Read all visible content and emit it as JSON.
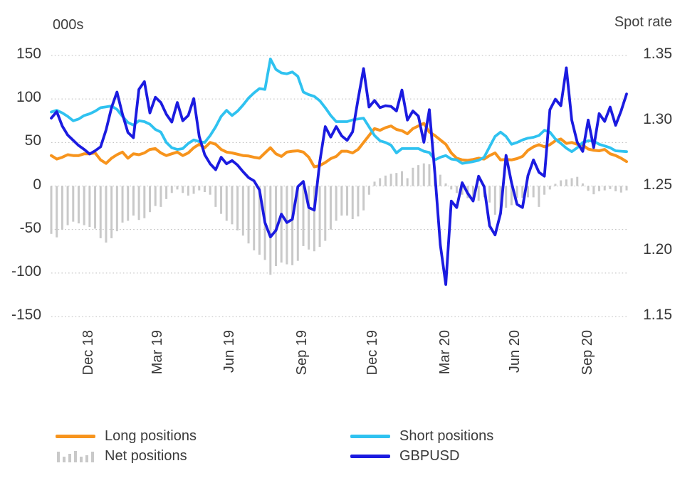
{
  "axis_titles": {
    "left": "000s",
    "right": "Spot rate"
  },
  "colors": {
    "long": "#F7941D",
    "short": "#2FC2F0",
    "gbpusd": "#1B1BE0",
    "net": "#C9C9C9",
    "grid": "#BDBDBD",
    "text": "#3F3F3F"
  },
  "legend": {
    "items": [
      {
        "label": "Long positions",
        "series": "long",
        "icon": "orange-line-swatch"
      },
      {
        "label": "Net positions",
        "series": "net",
        "icon": "gray-bars-swatch"
      },
      {
        "label": "Short positions",
        "series": "short",
        "icon": "cyan-line-swatch"
      },
      {
        "label": "GBPUSD",
        "series": "gbpusd",
        "icon": "blue-line-swatch"
      }
    ]
  },
  "chart_data": {
    "type": "line+bar",
    "title": "",
    "x_unit": "weekly observations, Oct 2018 - Nov 2020",
    "grid": "horizontal-dotted",
    "legend_position": "bottom",
    "x_ticks": [
      {
        "label": "Dec 18",
        "week": 6.9
      },
      {
        "label": "Mar 19",
        "week": 19.5
      },
      {
        "label": "Jun 19",
        "week": 32.6
      },
      {
        "label": "Sep 19",
        "week": 45.9
      },
      {
        "label": "Dec 19",
        "week": 58.7
      },
      {
        "label": "Mar 20",
        "week": 72.0
      },
      {
        "label": "Jun 20",
        "week": 84.7
      },
      {
        "label": "Sep 20",
        "week": 98.0
      }
    ],
    "y_left": {
      "title": "000s",
      "range": [
        -150,
        150
      ],
      "tick_labels": [
        "150",
        "100",
        "50",
        "0",
        "-50",
        "-100",
        "-150"
      ],
      "tick_values": [
        150,
        100,
        50,
        0,
        -50,
        -100,
        -150
      ]
    },
    "y_right": {
      "title": "Spot rate",
      "range": [
        1.15,
        1.35
      ],
      "tick_labels": [
        "1.35",
        "1.30",
        "1.25",
        "1.20",
        "1.15"
      ],
      "tick_values": [
        1.35,
        1.3,
        1.25,
        1.2,
        1.15
      ]
    },
    "series": [
      {
        "name": "Net positions",
        "key": "net",
        "type": "bar",
        "axis": "left",
        "values": [
          -55,
          -59,
          -50,
          -45,
          -41,
          -43,
          -45,
          -47,
          -49,
          -60,
          -65,
          -60,
          -52,
          -42,
          -40,
          -34,
          -39,
          -37,
          -30,
          -23,
          -24,
          -15,
          -8,
          -4,
          -8,
          -11,
          -9,
          -5,
          -7,
          -10,
          -24,
          -32,
          -40,
          -44,
          -51,
          -57,
          -66,
          -74,
          -79,
          -85,
          -102,
          -92,
          -88,
          -90,
          -91,
          -86,
          -69,
          -73,
          -75,
          -70,
          -63,
          -50,
          -40,
          -34,
          -34,
          -38,
          -35,
          -28,
          -10,
          5,
          9,
          12,
          14,
          15,
          17,
          9,
          21,
          24,
          26,
          25,
          18,
          13,
          3,
          -4,
          -8,
          -10,
          -14,
          -14,
          -17,
          -13,
          -19,
          -33,
          -28,
          -25,
          -22,
          -14,
          -13.5,
          -13,
          -13,
          -24,
          -10,
          -4,
          2.5,
          6.5,
          7.5,
          9,
          10.5,
          3,
          -5.5,
          -9.5,
          -6,
          -5,
          -3.5,
          -6,
          -7.5,
          -5
        ]
      },
      {
        "name": "Long positions",
        "key": "long",
        "type": "line",
        "axis": "left",
        "values": [
          35,
          31,
          33,
          36,
          35,
          35,
          37,
          37,
          38,
          30,
          26,
          32,
          36,
          39,
          32,
          37,
          36,
          38,
          42,
          43,
          38,
          35,
          37,
          39,
          35,
          38,
          44,
          48,
          44,
          50,
          48,
          42,
          39,
          38,
          36.5,
          35,
          34.5,
          33,
          32,
          38,
          44,
          37,
          34,
          39,
          40,
          40.5,
          39,
          33,
          22,
          23.5,
          27,
          31.5,
          34,
          40,
          40,
          38,
          42,
          50,
          58,
          66,
          64,
          67,
          69,
          65,
          63.5,
          60,
          66,
          69,
          72,
          62,
          58,
          53,
          48,
          38,
          32,
          30,
          29.5,
          30.5,
          32,
          31,
          35,
          38,
          30,
          30.5,
          30,
          31.5,
          34,
          41,
          45,
          47.5,
          45,
          47.5,
          52,
          54,
          49,
          50,
          48,
          47,
          42.5,
          41,
          40.5,
          42,
          37,
          35,
          32,
          28
        ]
      },
      {
        "name": "Short positions",
        "key": "short",
        "type": "line",
        "axis": "left",
        "values": [
          85,
          87,
          84,
          80,
          75,
          77,
          81,
          83,
          86,
          90,
          91,
          92,
          88,
          80,
          73,
          70,
          75,
          74,
          71,
          65,
          62,
          50,
          44,
          42,
          43,
          49,
          53,
          51,
          50,
          58,
          68,
          80,
          87,
          81,
          86,
          93,
          101,
          107,
          112,
          111,
          146,
          134,
          130,
          129,
          131,
          126,
          108,
          105,
          103,
          98,
          90,
          81,
          74,
          74,
          74,
          76,
          77,
          78,
          68,
          58,
          52,
          50,
          47,
          38,
          43,
          43,
          43,
          43,
          40,
          38.5,
          30,
          33,
          35,
          31,
          30,
          26,
          27,
          28,
          29.5,
          33,
          45,
          57,
          62,
          57,
          48,
          50,
          53,
          55,
          56,
          58,
          64,
          62,
          54,
          49,
          43.5,
          39.5,
          44,
          50,
          52,
          51.5,
          48,
          46,
          44,
          40.5,
          40,
          39.5
        ]
      },
      {
        "name": "GBPUSD",
        "key": "gbpusd",
        "type": "line",
        "axis": "right",
        "values": [
          1.302,
          1.307,
          1.296,
          1.289,
          1.285,
          1.281,
          1.278,
          1.2745,
          1.277,
          1.28,
          1.293,
          1.31,
          1.322,
          1.305,
          1.291,
          1.287,
          1.324,
          1.33,
          1.306,
          1.318,
          1.314,
          1.305,
          1.299,
          1.314,
          1.3,
          1.304,
          1.317,
          1.288,
          1.274,
          1.267,
          1.2625,
          1.272,
          1.267,
          1.2695,
          1.266,
          1.261,
          1.2565,
          1.254,
          1.247,
          1.222,
          1.211,
          1.216,
          1.2285,
          1.222,
          1.2245,
          1.2495,
          1.2535,
          1.2335,
          1.2315,
          1.2685,
          1.2955,
          1.2875,
          1.2955,
          1.2885,
          1.285,
          1.2915,
          1.3165,
          1.34,
          1.3105,
          1.3155,
          1.31,
          1.3115,
          1.311,
          1.3075,
          1.3235,
          1.3005,
          1.3075,
          1.3035,
          1.2835,
          1.3085,
          1.26,
          1.205,
          1.1745,
          1.2385,
          1.2335,
          1.2525,
          1.2445,
          1.2385,
          1.2575,
          1.2495,
          1.2195,
          1.2125,
          1.229,
          1.2735,
          1.2525,
          1.236,
          1.2335,
          1.258,
          1.27,
          1.2605,
          1.2575,
          1.3085,
          1.3165,
          1.3115,
          1.3405,
          1.3005,
          1.2835,
          1.2765,
          1.3005,
          1.2795,
          1.3055,
          1.2995,
          1.3105,
          1.2965,
          1.3075,
          1.3205
        ]
      }
    ]
  }
}
